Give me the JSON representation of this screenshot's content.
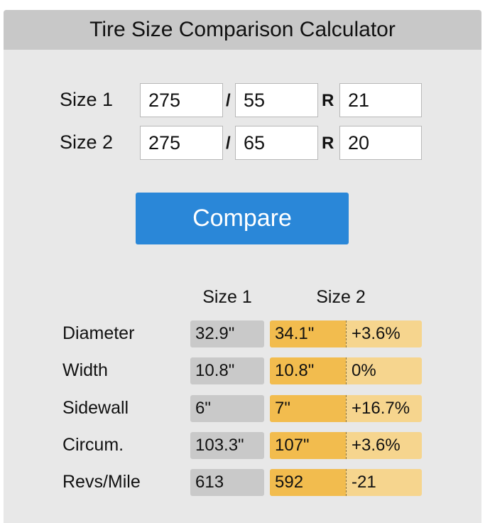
{
  "header": {
    "title": "Tire Size Comparison Calculator"
  },
  "form": {
    "rows": [
      {
        "label": "Size 1",
        "width": "275",
        "separator": "/",
        "aspect": "55",
        "construction": "R",
        "rim": "21"
      },
      {
        "label": "Size 2",
        "width": "275",
        "separator": "/",
        "aspect": "65",
        "construction": "R",
        "rim": "20"
      }
    ]
  },
  "button": {
    "label": "Compare"
  },
  "results": {
    "columns": [
      "Size 1",
      "Size 2"
    ],
    "rows": [
      {
        "label": "Diameter",
        "size1": "32.9\"",
        "size2": "34.1\"",
        "difference": "+3.6%"
      },
      {
        "label": "Width",
        "size1": "10.8\"",
        "size2": "10.8\"",
        "difference": "0%"
      },
      {
        "label": "Sidewall",
        "size1": "6\"",
        "size2": "7\"",
        "difference": "+16.7%"
      },
      {
        "label": "Circum.",
        "size1": "103.3\"",
        "size2": "107\"",
        "difference": "+3.6%"
      },
      {
        "label": "Revs/Mile",
        "size1": "613",
        "size2": "592",
        "difference": "-21"
      }
    ]
  }
}
